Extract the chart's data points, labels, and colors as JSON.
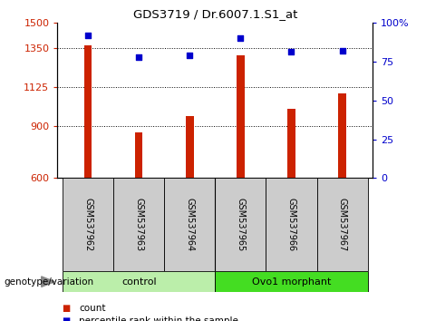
{
  "title": "GDS3719 / Dr.6007.1.S1_at",
  "samples": [
    "GSM537962",
    "GSM537963",
    "GSM537964",
    "GSM537965",
    "GSM537966",
    "GSM537967"
  ],
  "counts": [
    1370,
    865,
    960,
    1310,
    1000,
    1090
  ],
  "percentile_ranks": [
    92,
    78,
    79,
    90,
    81,
    82
  ],
  "ylim_left": [
    600,
    1500
  ],
  "ylim_right": [
    0,
    100
  ],
  "yticks_left": [
    600,
    900,
    1125,
    1350,
    1500
  ],
  "yticks_right": [
    0,
    25,
    50,
    75,
    100
  ],
  "bar_color": "#cc2200",
  "dot_color": "#0000cc",
  "sample_box_color": "#cccccc",
  "groups": [
    {
      "label": "control",
      "color": "#bbeeaa",
      "start": 0,
      "end": 2
    },
    {
      "label": "Ovo1 morphant",
      "color": "#44dd22",
      "start": 3,
      "end": 5
    }
  ],
  "legend_count_color": "#cc2200",
  "legend_pct_color": "#0000cc",
  "genotype_label": "genotype/variation"
}
